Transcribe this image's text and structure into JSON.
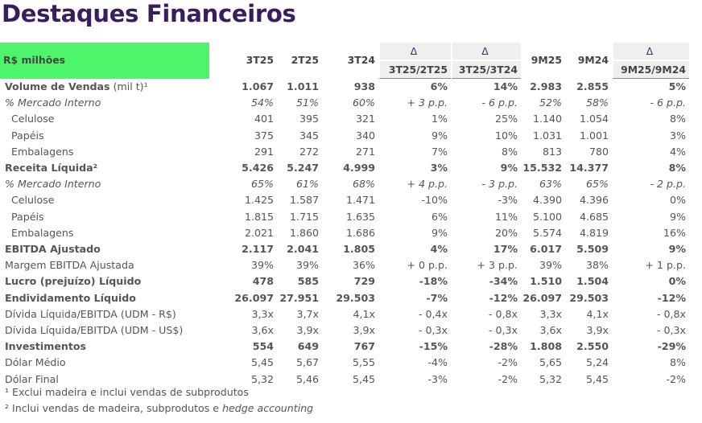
{
  "title": "Destaques Financeiros",
  "header": {
    "label": "R$ milhões",
    "cols": [
      "3T25",
      "2T25",
      "3T24",
      "3T25/2T25",
      "3T25/3T24",
      "9M25",
      "9M24",
      "9M25/9M24"
    ],
    "delta": "Δ"
  },
  "rows": [
    {
      "type": "b",
      "label": "Volume de Vendas",
      "suffix": " (mil t)¹",
      "v": [
        "1.067",
        "1.011",
        "938",
        "6%",
        "14%",
        "2.983",
        "2.855",
        "5%"
      ]
    },
    {
      "type": "i",
      "label": "% Mercado Interno",
      "v": [
        "54%",
        "51%",
        "60%",
        "+ 3 p.p.",
        "- 6 p.p.",
        "52%",
        "58%",
        "- 6 p.p."
      ]
    },
    {
      "type": "n",
      "label": "Celulose",
      "v": [
        "401",
        "395",
        "321",
        "1%",
        "25%",
        "1.140",
        "1.054",
        "8%"
      ]
    },
    {
      "type": "n",
      "label": "Papéis",
      "v": [
        "375",
        "345",
        "340",
        "9%",
        "10%",
        "1.031",
        "1.001",
        "3%"
      ]
    },
    {
      "type": "n",
      "label": "Embalagens",
      "v": [
        "291",
        "272",
        "271",
        "7%",
        "8%",
        "813",
        "780",
        "4%"
      ]
    },
    {
      "type": "b",
      "label": "Receita Líquida²",
      "v": [
        "5.426",
        "5.247",
        "4.999",
        "3%",
        "9%",
        "15.532",
        "14.377",
        "8%"
      ]
    },
    {
      "type": "i",
      "label": "% Mercado Interno",
      "v": [
        "65%",
        "61%",
        "68%",
        "+ 4 p.p.",
        "- 3 p.p.",
        "63%",
        "65%",
        "- 2 p.p."
      ]
    },
    {
      "type": "n",
      "label": "Celulose",
      "v": [
        "1.425",
        "1.587",
        "1.471",
        "-10%",
        "-3%",
        "4.390",
        "4.396",
        "0%"
      ]
    },
    {
      "type": "n",
      "label": "Papéis",
      "v": [
        "1.815",
        "1.715",
        "1.635",
        "6%",
        "11%",
        "5.100",
        "4.685",
        "9%"
      ]
    },
    {
      "type": "n",
      "label": "Embalagens",
      "v": [
        "2.021",
        "1.860",
        "1.686",
        "9%",
        "20%",
        "5.574",
        "4.819",
        "16%"
      ]
    },
    {
      "type": "b",
      "label": "EBITDA Ajustado",
      "v": [
        "2.117",
        "2.041",
        "1.805",
        "4%",
        "17%",
        "6.017",
        "5.509",
        "9%"
      ]
    },
    {
      "type": "r",
      "label": "Margem EBITDA Ajustada",
      "v": [
        "39%",
        "39%",
        "36%",
        "+ 0 p.p.",
        "+ 3 p.p.",
        "39%",
        "38%",
        "+ 1 p.p."
      ]
    },
    {
      "type": "b",
      "label": "Lucro (prejuízo) Líquido",
      "v": [
        "478",
        "585",
        "729",
        "-18%",
        "-34%",
        "1.510",
        "1.504",
        "0%"
      ]
    },
    {
      "type": "b",
      "label": "Endividamento Líquido",
      "v": [
        "26.097",
        "27.951",
        "29.503",
        "-7%",
        "-12%",
        "26.097",
        "29.503",
        "-12%"
      ]
    },
    {
      "type": "r",
      "label": "Dívida Líquida/EBITDA (UDM - R$)",
      "v": [
        "3,3x",
        "3,7x",
        "4,1x",
        "- 0,4x",
        "- 0,8x",
        "3,3x",
        "4,1x",
        "- 0,8x"
      ]
    },
    {
      "type": "r",
      "label": "Dívida Líquida/EBITDA (UDM - US$)",
      "v": [
        "3,6x",
        "3,9x",
        "3,9x",
        "- 0,3x",
        "- 0,3x",
        "3,6x",
        "3,9x",
        "- 0,3x"
      ]
    },
    {
      "type": "b",
      "label": "Investimentos",
      "v": [
        "554",
        "649",
        "767",
        "-15%",
        "-28%",
        "1.808",
        "2.550",
        "-29%"
      ]
    },
    {
      "type": "r",
      "label": "Dólar Médio",
      "v": [
        "5,45",
        "5,67",
        "5,55",
        "-4%",
        "-2%",
        "5,65",
        "5,24",
        "8%"
      ]
    },
    {
      "type": "r",
      "label": "Dólar Final",
      "v": [
        "5,32",
        "5,46",
        "5,45",
        "-3%",
        "-2%",
        "5,32",
        "5,45",
        "-2%"
      ]
    }
  ],
  "footnotes": [
    "¹ Exclui madeira e inclui vendas de subprodutos",
    "² Inclui vendas de madeira, subprodutos e ",
    "hedge accounting"
  ]
}
